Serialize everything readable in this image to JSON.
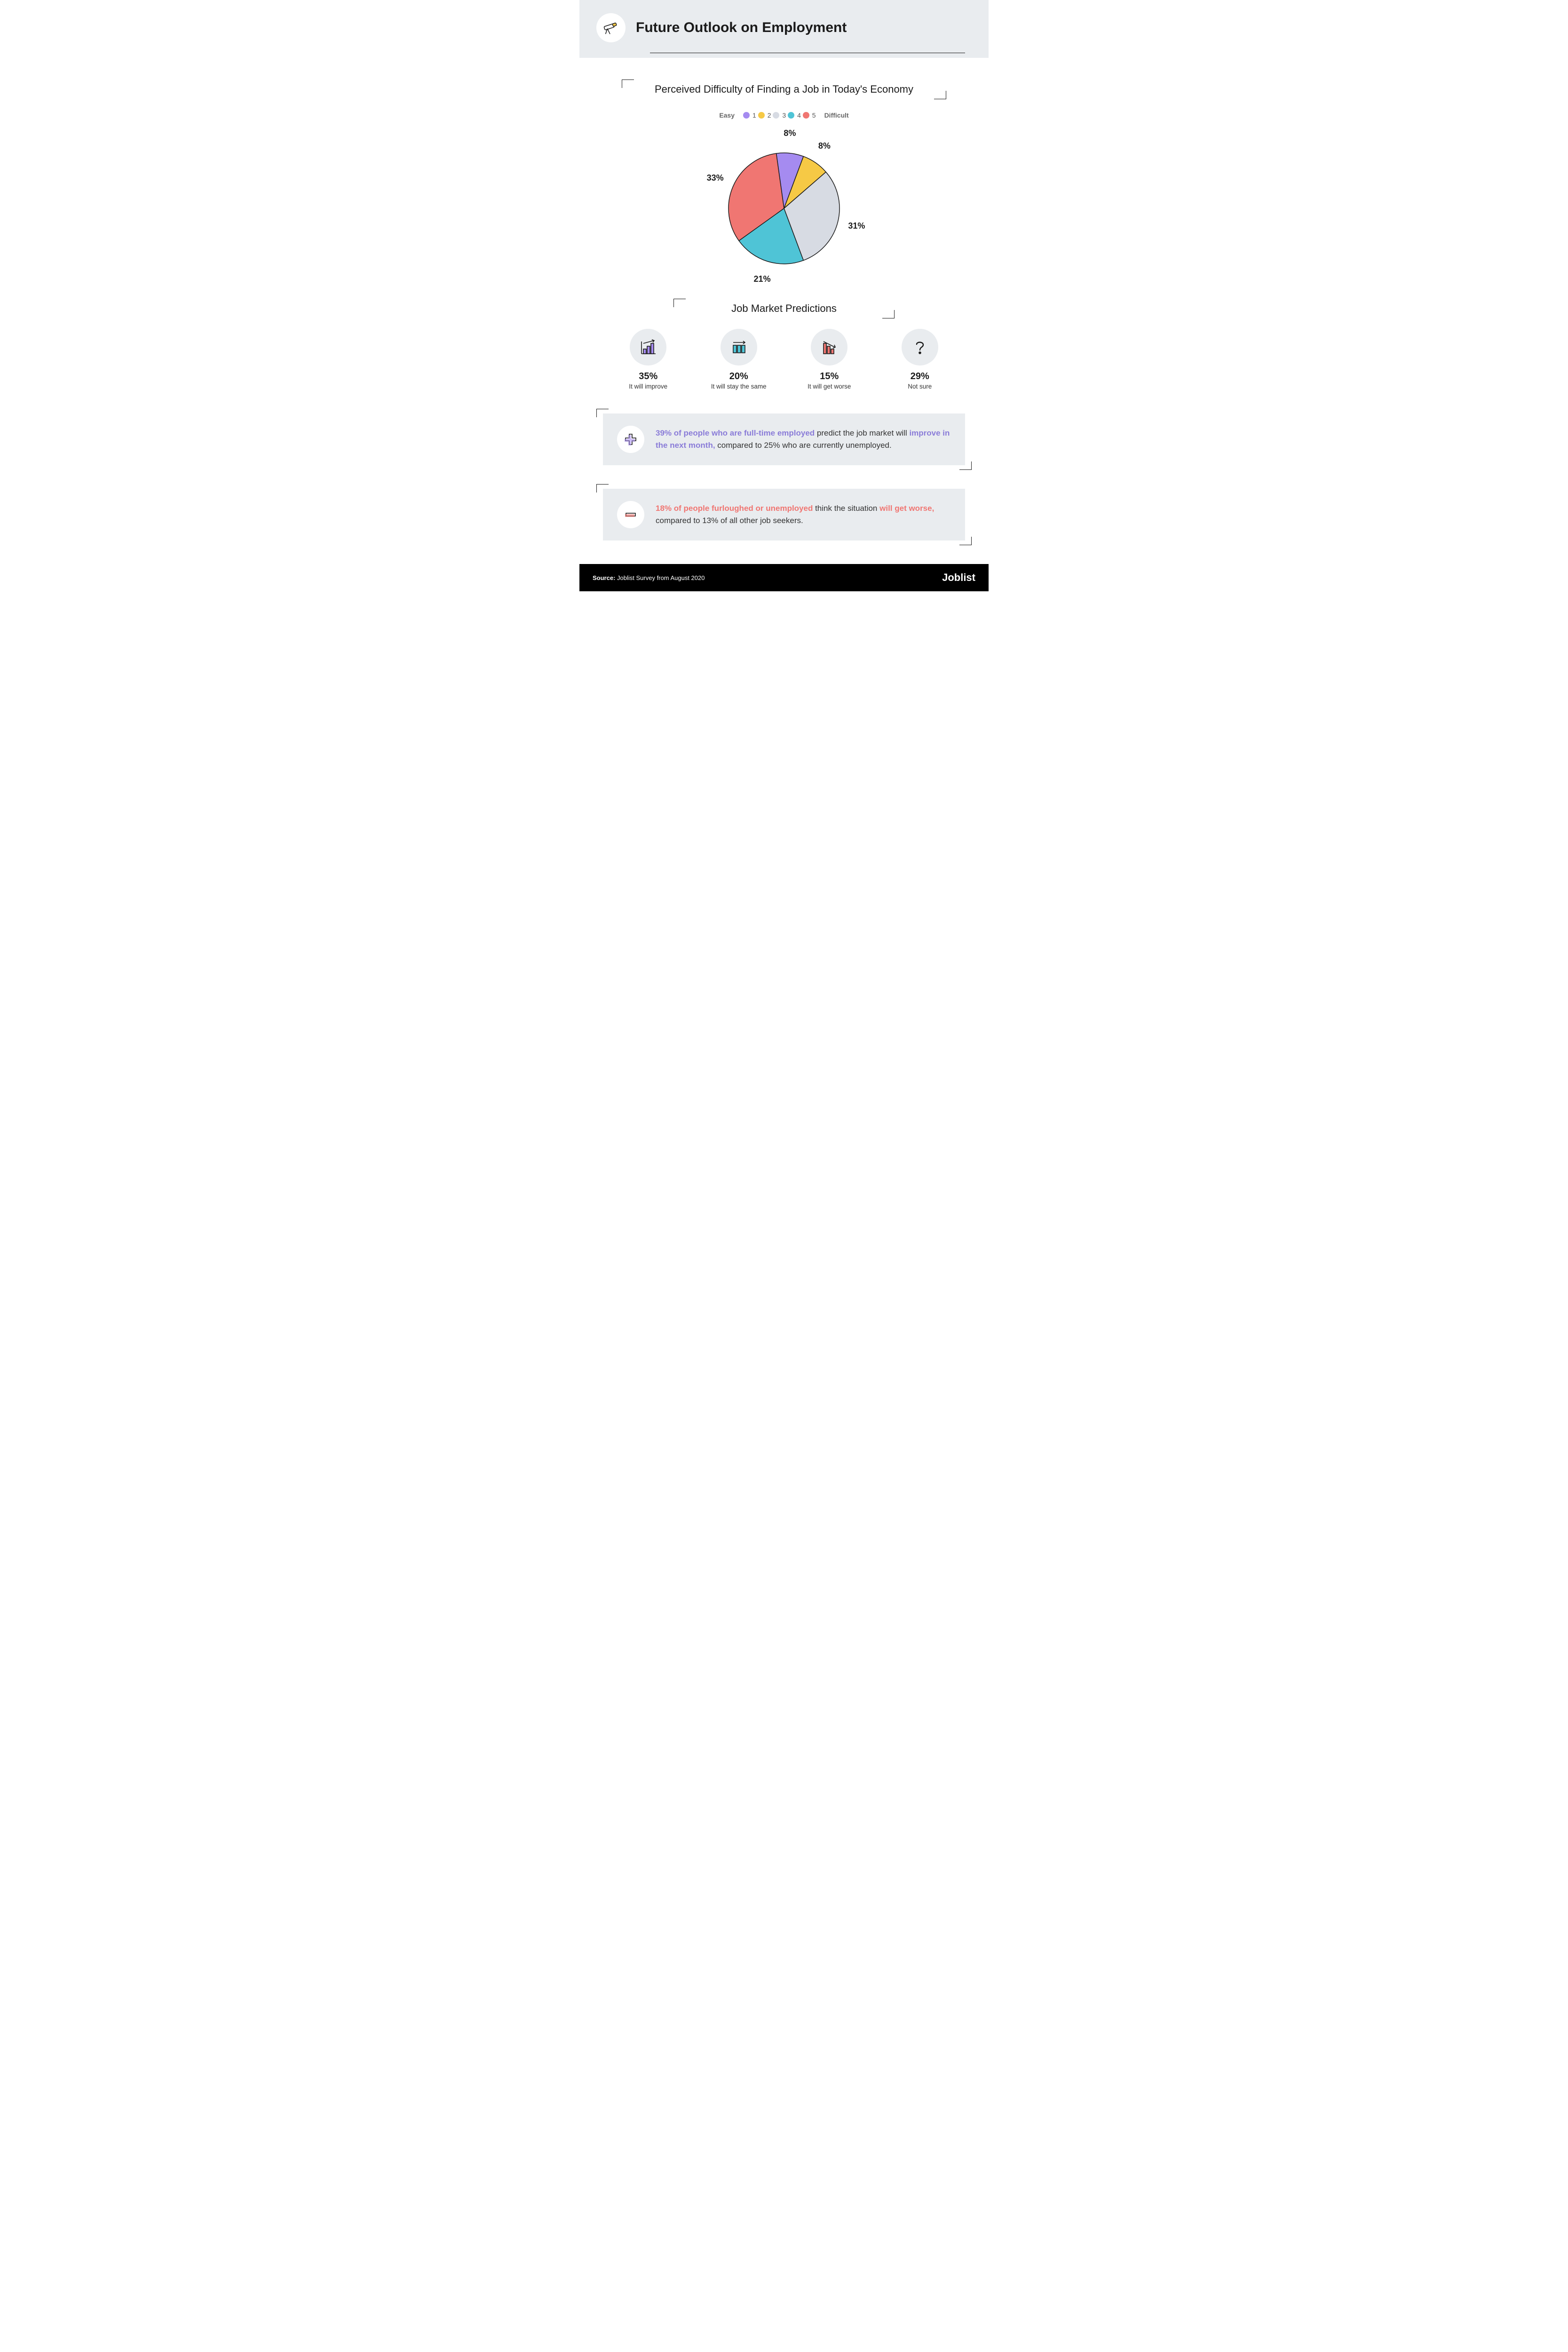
{
  "header": {
    "title": "Future Outlook on Employment",
    "icon": "telescope-icon",
    "bg_color": "#e9ecef"
  },
  "section1": {
    "title": "Perceived Difficulty of Finding a Job in Today's Economy",
    "legend_left": "Easy",
    "legend_right": "Difficult",
    "pie": {
      "type": "pie",
      "start_angle_deg": -8,
      "slices": [
        {
          "key": "1",
          "value": 8,
          "label": "8%",
          "color": "#a58bf0"
        },
        {
          "key": "2",
          "value": 8,
          "label": "8%",
          "color": "#f6c945"
        },
        {
          "key": "3",
          "value": 31,
          "label": "31%",
          "color": "#d7dbe3"
        },
        {
          "key": "4",
          "value": 21,
          "label": "21%",
          "color": "#4fc4d6"
        },
        {
          "key": "5",
          "value": 33,
          "label": "33%",
          "color": "#f07672"
        }
      ],
      "stroke_color": "#1a1a1a",
      "stroke_width": 1.5,
      "label_fontsize": 18,
      "label_fontweight": 800,
      "label_radius_factor": 1.35
    }
  },
  "section2": {
    "title": "Job Market Predictions",
    "items": [
      {
        "icon": "chart-up-icon",
        "pct": "35%",
        "label": "It will improve",
        "accent": "#a58bf0"
      },
      {
        "icon": "chart-flat-icon",
        "pct": "20%",
        "label": "It will stay the same",
        "accent": "#4fc4d6"
      },
      {
        "icon": "chart-down-icon",
        "pct": "15%",
        "label": "It will get worse",
        "accent": "#f07672"
      },
      {
        "icon": "question-icon",
        "pct": "29%",
        "label": "Not sure",
        "accent": "#666666"
      }
    ]
  },
  "callouts": [
    {
      "icon": "plus-icon",
      "icon_color": "#a58bf0",
      "highlight_class": "hl-purple",
      "parts": [
        {
          "t": "39% of people who are full-time employed",
          "hl": true
        },
        {
          "t": " predict the job market will ",
          "hl": false
        },
        {
          "t": "improve in the next month,",
          "hl": true
        },
        {
          "t": " compared to 25% who are currently unemployed.",
          "hl": false
        }
      ]
    },
    {
      "icon": "minus-icon",
      "icon_color": "#f07672",
      "highlight_class": "hl-red",
      "parts": [
        {
          "t": "18% of people furloughed or unemployed",
          "hl": true
        },
        {
          "t": " think the situation ",
          "hl": false
        },
        {
          "t": "will get worse,",
          "hl": true
        },
        {
          "t": " compared to 13% of all other job seekers.",
          "hl": false
        }
      ]
    }
  ],
  "footer": {
    "source_label": "Source:",
    "source_text": "Joblist Survey from August 2020",
    "brand": "Joblist"
  },
  "palette": {
    "bg": "#ffffff",
    "header_bg": "#e9ecef",
    "text": "#1a1a1a",
    "circle_bg": "#e9ecef"
  }
}
